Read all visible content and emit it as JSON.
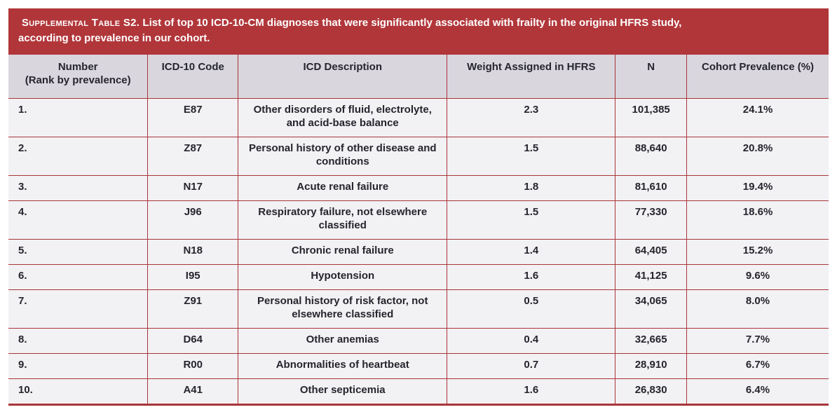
{
  "theme": {
    "banner-bg": "#b1363a",
    "banner-text": "#ffffff",
    "header-bg": "#d9d6de",
    "row-bg": "#f2f1f4",
    "border": "#a93539",
    "text": "#26252d",
    "page-bg": "#ffffff"
  },
  "banner": {
    "heading_smallcaps": "Supplemental Table S2.",
    "heading_rest": "List of top 10 ICD-10-CM diagnoses that were significantly associated with frailty in the original HFRS study,",
    "heading_line2": "according to prevalence in our cohort."
  },
  "table": {
    "header": {
      "number_line1": "Number",
      "number_line2": "(Rank by prevalence)",
      "icd_code": "ICD-10 Code",
      "icd_description": "ICD Description",
      "weight": "Weight Assigned in HFRS",
      "n": "N",
      "prevalence": "Cohort Prevalence (%)"
    },
    "rows": [
      {
        "rank": "1.",
        "code": "E87",
        "description": "Other disorders of fluid, electrolyte, and acid-base balance",
        "weight": "2.3",
        "n": "101,385",
        "prevalence": "24.1%"
      },
      {
        "rank": "2.",
        "code": "Z87",
        "description": "Personal history of other disease and conditions",
        "weight": "1.5",
        "n": "88,640",
        "prevalence": "20.8%"
      },
      {
        "rank": "3.",
        "code": "N17",
        "description": "Acute renal failure",
        "weight": "1.8",
        "n": "81,610",
        "prevalence": "19.4%"
      },
      {
        "rank": "4.",
        "code": "J96",
        "description": "Respiratory failure, not elsewhere classified",
        "weight": "1.5",
        "n": "77,330",
        "prevalence": "18.6%"
      },
      {
        "rank": "5.",
        "code": "N18",
        "description": "Chronic renal failure",
        "weight": "1.4",
        "n": "64,405",
        "prevalence": "15.2%"
      },
      {
        "rank": "6.",
        "code": "I95",
        "description": "Hypotension",
        "weight": "1.6",
        "n": "41,125",
        "prevalence": "9.6%"
      },
      {
        "rank": "7.",
        "code": "Z91",
        "description": "Personal history of risk factor, not elsewhere classified",
        "weight": "0.5",
        "n": "34,065",
        "prevalence": "8.0%"
      },
      {
        "rank": "8.",
        "code": "D64",
        "description": "Other anemias",
        "weight": "0.4",
        "n": "32,665",
        "prevalence": "7.7%"
      },
      {
        "rank": "9.",
        "code": "R00",
        "description": "Abnormalities of heartbeat",
        "weight": "0.7",
        "n": "28,910",
        "prevalence": "6.7%"
      },
      {
        "rank": "10.",
        "code": "A41",
        "description": "Other septicemia",
        "weight": "1.6",
        "n": "26,830",
        "prevalence": "6.4%"
      }
    ]
  }
}
